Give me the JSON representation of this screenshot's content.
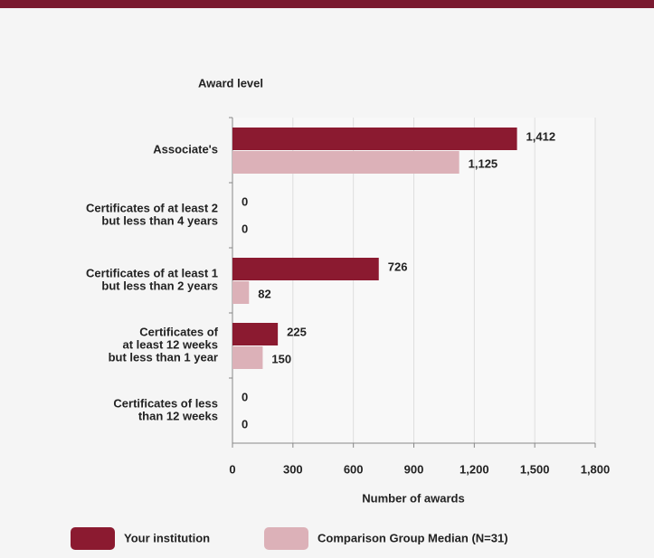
{
  "chart_data": {
    "type": "bar",
    "orientation": "horizontal",
    "title": "Award level",
    "x_label": "Number of awards",
    "categories": [
      [
        "Associate's"
      ],
      [
        "Certificates of at least 2",
        "but less than 4 years"
      ],
      [
        "Certificates of at least 1",
        "but  less than 2 years"
      ],
      [
        "Certificates of",
        "at least 12 weeks",
        "but less than 1 year"
      ],
      [
        "Certificates of less",
        "than 12 weeks"
      ]
    ],
    "series": [
      {
        "name": "Your institution",
        "color": "#8b1a30",
        "values": [
          1412,
          0,
          726,
          225,
          0
        ],
        "value_labels": [
          "1,412",
          "0",
          "726",
          "225",
          "0"
        ]
      },
      {
        "name": "Comparison Group Median (N=31)",
        "color": "#dcb1b8",
        "values": [
          1125,
          0,
          82,
          150,
          0
        ],
        "value_labels": [
          "1,125",
          "0",
          "82",
          "150",
          "0"
        ]
      }
    ],
    "xlim": [
      0,
      1800
    ],
    "xticks": [
      0,
      300,
      600,
      900,
      {
        "value": 1200,
        "label": "1,200"
      },
      {
        "value": 1500,
        "label": "1,500"
      },
      {
        "value": 1800,
        "label": "1,800"
      }
    ],
    "grid": true,
    "legend": "bottom"
  }
}
